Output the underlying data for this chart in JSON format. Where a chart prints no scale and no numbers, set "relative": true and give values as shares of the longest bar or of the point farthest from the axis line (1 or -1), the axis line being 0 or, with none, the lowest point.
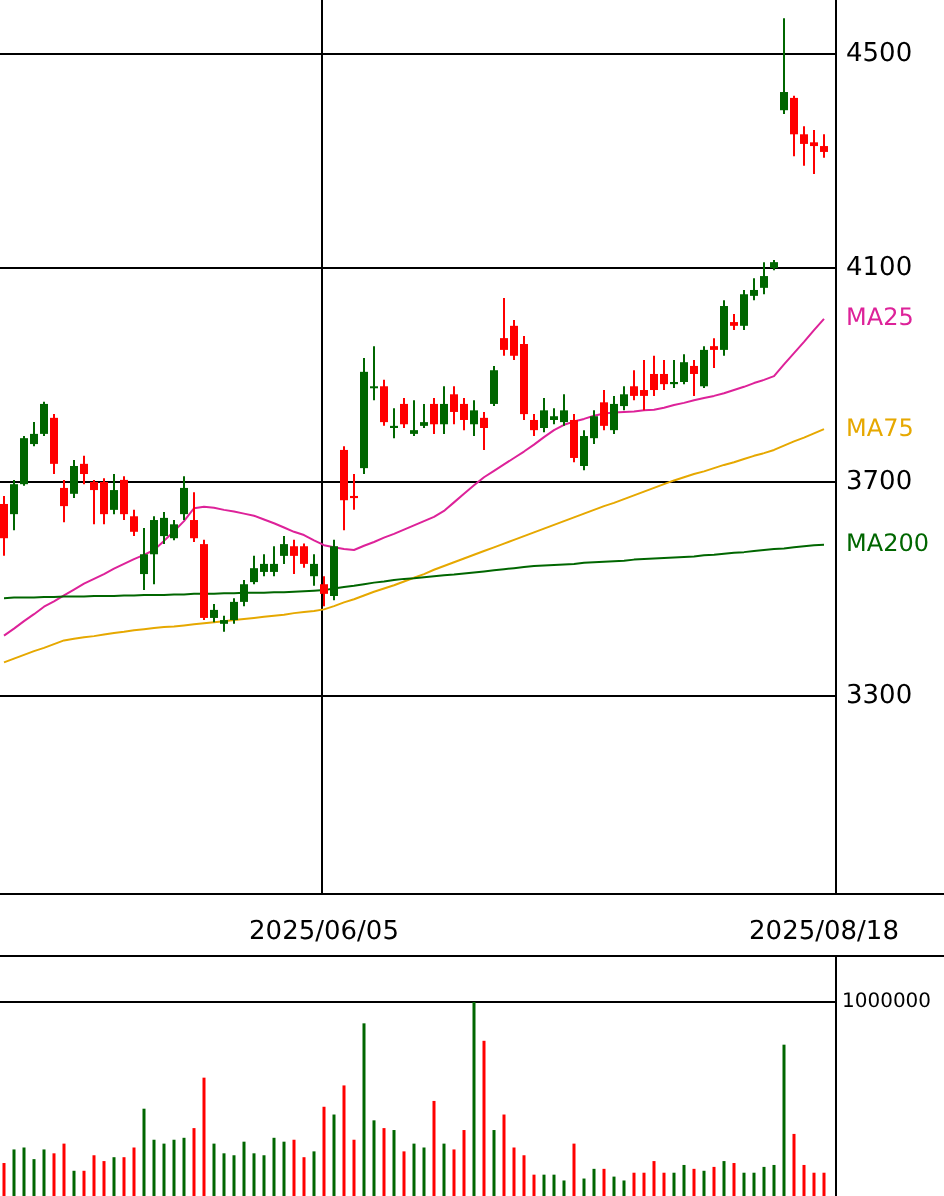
{
  "chart_data": [
    {
      "type": "candlestick",
      "categories": [
        null,
        null,
        null,
        null,
        null,
        null,
        null,
        null,
        null,
        null,
        null,
        null,
        null,
        null,
        null,
        null,
        null,
        null,
        null,
        null,
        null,
        null,
        null,
        null,
        null,
        null,
        null,
        null,
        null,
        null,
        null,
        null,
        "2025/06/05",
        null,
        null,
        null,
        null,
        null,
        null,
        null,
        null,
        null,
        null,
        null,
        null,
        null,
        null,
        null,
        null,
        null,
        null,
        null,
        null,
        null,
        null,
        null,
        null,
        null,
        null,
        null,
        null,
        null,
        null,
        null,
        null,
        null,
        null,
        null,
        null,
        null,
        null,
        null,
        null,
        null,
        null,
        null,
        null,
        null,
        null,
        null,
        null,
        null,
        "2025/08/18"
      ],
      "ohlc": [
        [
          3659,
          3674,
          3562,
          3595
        ],
        [
          3640,
          3704,
          3610,
          3696
        ],
        [
          3696,
          3786,
          3693,
          3782
        ],
        [
          3771,
          3812,
          3767,
          3790
        ],
        [
          3790,
          3850,
          3786,
          3846
        ],
        [
          3820,
          3827,
          3715,
          3734
        ],
        [
          3689,
          3704,
          3625,
          3655
        ],
        [
          3678,
          3741,
          3670,
          3730
        ],
        [
          3734,
          3749,
          3696,
          3715
        ],
        [
          3700,
          3704,
          3621,
          3685
        ],
        [
          3700,
          3707,
          3621,
          3640
        ],
        [
          3648,
          3715,
          3640,
          3685
        ],
        [
          3704,
          3711,
          3629,
          3640
        ],
        [
          3636,
          3648,
          3599,
          3607
        ],
        [
          3528,
          3614,
          3498,
          3565
        ],
        [
          3565,
          3636,
          3509,
          3629
        ],
        [
          3599,
          3644,
          3584,
          3633
        ],
        [
          3595,
          3629,
          3591,
          3621
        ],
        [
          3640,
          3711,
          3629,
          3689
        ],
        [
          3629,
          3681,
          3588,
          3595
        ],
        [
          3584,
          3592,
          3442,
          3446
        ],
        [
          3446,
          3472,
          3438,
          3461
        ],
        [
          3435,
          3450,
          3420,
          3442
        ],
        [
          3442,
          3483,
          3435,
          3476
        ],
        [
          3476,
          3517,
          3468,
          3509
        ],
        [
          3513,
          3562,
          3509,
          3539
        ],
        [
          3532,
          3565,
          3524,
          3547
        ],
        [
          3532,
          3580,
          3524,
          3547
        ],
        [
          3562,
          3599,
          3547,
          3584
        ],
        [
          3580,
          3592,
          3528,
          3562
        ],
        [
          3580,
          3585,
          3540,
          3547
        ],
        [
          3524,
          3565,
          3506,
          3547
        ],
        [
          3509,
          3524,
          3468,
          3491
        ],
        [
          3487,
          3592,
          3479,
          3580
        ],
        [
          3760,
          3767,
          3610,
          3666
        ],
        [
          3674,
          3715,
          3648,
          3670
        ],
        [
          3726,
          3932,
          3715,
          3906
        ],
        [
          3876,
          3954,
          3853,
          3879
        ],
        [
          3879,
          3891,
          3805,
          3812
        ],
        [
          3801,
          3838,
          3782,
          3805
        ],
        [
          3846,
          3857,
          3801,
          3808
        ],
        [
          3790,
          3853,
          3786,
          3797
        ],
        [
          3805,
          3846,
          3801,
          3812
        ],
        [
          3846,
          3857,
          3790,
          3808
        ],
        [
          3808,
          3879,
          3790,
          3846
        ],
        [
          3864,
          3879,
          3808,
          3831
        ],
        [
          3846,
          3857,
          3797,
          3816
        ],
        [
          3808,
          3853,
          3786,
          3834
        ],
        [
          3820,
          3831,
          3760,
          3801
        ],
        [
          3846,
          3917,
          3842,
          3909
        ],
        [
          3969,
          4044,
          3936,
          3947
        ],
        [
          3992,
          4003,
          3928,
          3936
        ],
        [
          3958,
          3973,
          3816,
          3827
        ],
        [
          3816,
          3827,
          3786,
          3797
        ],
        [
          3801,
          3857,
          3793,
          3834
        ],
        [
          3816,
          3838,
          3808,
          3823
        ],
        [
          3812,
          3864,
          3805,
          3834
        ],
        [
          3816,
          3827,
          3737,
          3745
        ],
        [
          3730,
          3797,
          3722,
          3786
        ],
        [
          3782,
          3834,
          3771,
          3823
        ],
        [
          3849,
          3872,
          3797,
          3805
        ],
        [
          3797,
          3861,
          3790,
          3846
        ],
        [
          3842,
          3879,
          3834,
          3864
        ],
        [
          3879,
          3909,
          3853,
          3861
        ],
        [
          3872,
          3928,
          3834,
          3861
        ],
        [
          3902,
          3936,
          3861,
          3872
        ],
        [
          3902,
          3928,
          3872,
          3883
        ],
        [
          3883,
          3928,
          3876,
          3887
        ],
        [
          3887,
          3939,
          3883,
          3924
        ],
        [
          3917,
          3928,
          3861,
          3902
        ],
        [
          3879,
          3954,
          3876,
          3947
        ],
        [
          3954,
          3969,
          3913,
          3947
        ],
        [
          3947,
          4040,
          3936,
          4029
        ],
        [
          3999,
          4014,
          3984,
          3992
        ],
        [
          3992,
          4059,
          3984,
          4051
        ],
        [
          4048,
          4081,
          4040,
          4059
        ],
        [
          4063,
          4111,
          4051,
          4085
        ],
        [
          4100,
          4115,
          4096,
          4111
        ],
        [
          4395,
          4567,
          4388,
          4429
        ],
        [
          4418,
          4422,
          4309,
          4350
        ],
        [
          4350,
          4365,
          4291,
          4332
        ],
        [
          4335,
          4358,
          4276,
          4328
        ],
        [
          4328,
          4350,
          4306,
          4317
        ]
      ],
      "colors": [
        "#ff0000",
        "#006600",
        "#006600",
        "#006600",
        "#006600",
        "#ff0000",
        "#ff0000",
        "#006600",
        "#ff0000",
        "#ff0000",
        "#ff0000",
        "#006600",
        "#ff0000",
        "#ff0000",
        "#006600",
        "#006600",
        "#006600",
        "#006600",
        "#006600",
        "#ff0000",
        "#ff0000",
        "#006600",
        "#006600",
        "#006600",
        "#006600",
        "#006600",
        "#006600",
        "#006600",
        "#006600",
        "#ff0000",
        "#ff0000",
        "#006600",
        "#ff0000",
        "#006600",
        "#ff0000",
        "#ff0000",
        "#006600",
        "#006600",
        "#ff0000",
        "#006600",
        "#ff0000",
        "#006600",
        "#006600",
        "#ff0000",
        "#006600",
        "#ff0000",
        "#ff0000",
        "#006600",
        "#ff0000",
        "#006600",
        "#ff0000",
        "#ff0000",
        "#ff0000",
        "#ff0000",
        "#006600",
        "#006600",
        "#006600",
        "#ff0000",
        "#006600",
        "#006600",
        "#ff0000",
        "#006600",
        "#006600",
        "#ff0000",
        "#ff0000",
        "#ff0000",
        "#ff0000",
        "#006600",
        "#006600",
        "#ff0000",
        "#006600",
        "#ff0000",
        "#006600",
        "#ff0000",
        "#006600",
        "#006600",
        "#006600",
        "#006600",
        "#006600",
        "#ff0000",
        "#ff0000",
        "#ff0000",
        "#ff0000"
      ],
      "series": [
        {
          "type": "line",
          "name": "MA25",
          "color": "#dd2299",
          "values": [
            3413,
            3426,
            3440,
            3453,
            3467,
            3477,
            3488,
            3499,
            3510,
            3519,
            3528,
            3538,
            3547,
            3556,
            3564,
            3573,
            3590,
            3608,
            3627,
            3651,
            3654,
            3652,
            3648,
            3645,
            3641,
            3637,
            3630,
            3623,
            3615,
            3607,
            3601,
            3591,
            3582,
            3578,
            3575,
            3573,
            3581,
            3588,
            3596,
            3603,
            3611,
            3619,
            3627,
            3635,
            3646,
            3662,
            3678,
            3694,
            3709,
            3721,
            3733,
            3745,
            3757,
            3770,
            3784,
            3797,
            3807,
            3813,
            3818,
            3824,
            3828,
            3830,
            3831,
            3832,
            3834,
            3835,
            3839,
            3844,
            3848,
            3853,
            3857,
            3861,
            3866,
            3872,
            3878,
            3885,
            3891,
            3898,
            3920,
            3941,
            3962,
            3984,
            4005
          ]
        },
        {
          "type": "line",
          "name": "MA75",
          "color": "#e6a800",
          "values": [
            3363,
            3370,
            3377,
            3384,
            3390,
            3397,
            3404,
            3407,
            3410,
            3412,
            3415,
            3418,
            3420,
            3423,
            3425,
            3427,
            3429,
            3430,
            3432,
            3434,
            3436,
            3438,
            3440,
            3442,
            3444,
            3446,
            3448,
            3450,
            3452,
            3455,
            3457,
            3459,
            3462,
            3468,
            3475,
            3481,
            3488,
            3495,
            3501,
            3507,
            3514,
            3521,
            3528,
            3536,
            3543,
            3550,
            3557,
            3564,
            3571,
            3578,
            3585,
            3592,
            3599,
            3606,
            3613,
            3620,
            3627,
            3634,
            3641,
            3648,
            3655,
            3661,
            3668,
            3675,
            3682,
            3689,
            3696,
            3703,
            3709,
            3715,
            3720,
            3726,
            3732,
            3737,
            3743,
            3749,
            3754,
            3760,
            3768,
            3776,
            3783,
            3791,
            3799
          ]
        },
        {
          "type": "line",
          "name": "MA200",
          "color": "#006600",
          "values": [
            3483,
            3484,
            3484,
            3484,
            3485,
            3485,
            3486,
            3486,
            3486,
            3487,
            3487,
            3487,
            3488,
            3488,
            3489,
            3489,
            3489,
            3490,
            3490,
            3491,
            3491,
            3491,
            3492,
            3492,
            3493,
            3493,
            3493,
            3494,
            3494,
            3495,
            3496,
            3497,
            3498,
            3501,
            3504,
            3506,
            3509,
            3512,
            3514,
            3517,
            3519,
            3520,
            3522,
            3524,
            3526,
            3527,
            3529,
            3531,
            3533,
            3535,
            3537,
            3539,
            3541,
            3543,
            3544,
            3545,
            3546,
            3547,
            3549,
            3550,
            3551,
            3552,
            3553,
            3555,
            3556,
            3557,
            3558,
            3559,
            3560,
            3561,
            3563,
            3564,
            3566,
            3568,
            3569,
            3571,
            3573,
            3575,
            3576,
            3578,
            3580,
            3582,
            3583
          ]
        }
      ],
      "ylim": [
        2930,
        4601
      ],
      "yticks": [
        3300,
        3700,
        4100,
        4500
      ],
      "grid": true
    },
    {
      "type": "bar",
      "relative": true,
      "categories": [
        null,
        null,
        null,
        null,
        null,
        null,
        null,
        null,
        null,
        null,
        null,
        null,
        null,
        null,
        null,
        null,
        null,
        null,
        null,
        null,
        null,
        null,
        null,
        null,
        null,
        null,
        null,
        null,
        null,
        null,
        null,
        null,
        null,
        null,
        null,
        null,
        null,
        null,
        null,
        null,
        null,
        null,
        null,
        null,
        null,
        null,
        null,
        null,
        null,
        null,
        null,
        null,
        null,
        null,
        null,
        null,
        null,
        null,
        null,
        null,
        null,
        null,
        null,
        null,
        null,
        null,
        null,
        null,
        null,
        null,
        null,
        null,
        null,
        null,
        null,
        null,
        null,
        null,
        null,
        null,
        null,
        null,
        null
      ],
      "values": [
        0.17,
        0.24,
        0.25,
        0.19,
        0.24,
        0.22,
        0.27,
        0.13,
        0.13,
        0.21,
        0.18,
        0.2,
        0.2,
        0.25,
        0.45,
        0.29,
        0.27,
        0.29,
        0.3,
        0.35,
        0.61,
        0.27,
        0.22,
        0.21,
        0.28,
        0.22,
        0.21,
        0.3,
        0.28,
        0.29,
        0.2,
        0.23,
        0.46,
        0.42,
        0.57,
        0.29,
        0.89,
        0.39,
        0.35,
        0.34,
        0.23,
        0.27,
        0.25,
        0.49,
        0.27,
        0.24,
        0.34,
        1,
        0.8,
        0.34,
        0.42,
        0.25,
        0.21,
        0.11,
        0.11,
        0.11,
        0.08,
        0.27,
        0.09,
        0.14,
        0.14,
        0.1,
        0.08,
        0.12,
        0.12,
        0.18,
        0.12,
        0.12,
        0.16,
        0.14,
        0.13,
        0.15,
        0.18,
        0.17,
        0.12,
        0.12,
        0.15,
        0.16,
        0.78,
        0.32,
        0.16,
        0.12,
        0.12
      ],
      "colors": [
        "#ff0000",
        "#006600",
        "#006600",
        "#006600",
        "#006600",
        "#ff0000",
        "#ff0000",
        "#006600",
        "#ff0000",
        "#ff0000",
        "#ff0000",
        "#006600",
        "#ff0000",
        "#ff0000",
        "#006600",
        "#006600",
        "#006600",
        "#006600",
        "#006600",
        "#ff0000",
        "#ff0000",
        "#006600",
        "#006600",
        "#006600",
        "#006600",
        "#006600",
        "#006600",
        "#006600",
        "#006600",
        "#ff0000",
        "#ff0000",
        "#006600",
        "#ff0000",
        "#006600",
        "#ff0000",
        "#ff0000",
        "#006600",
        "#006600",
        "#ff0000",
        "#006600",
        "#ff0000",
        "#006600",
        "#006600",
        "#ff0000",
        "#006600",
        "#ff0000",
        "#ff0000",
        "#006600",
        "#ff0000",
        "#006600",
        "#ff0000",
        "#ff0000",
        "#ff0000",
        "#ff0000",
        "#006600",
        "#006600",
        "#006600",
        "#ff0000",
        "#006600",
        "#006600",
        "#ff0000",
        "#006600",
        "#006600",
        "#ff0000",
        "#ff0000",
        "#ff0000",
        "#ff0000",
        "#006600",
        "#006600",
        "#ff0000",
        "#006600",
        "#ff0000",
        "#006600",
        "#ff0000",
        "#006600",
        "#006600",
        "#006600",
        "#006600",
        "#006600",
        "#ff0000",
        "#ff0000",
        "#ff0000",
        "#ff0000"
      ],
      "ref_lines": [
        {
          "axis": "y",
          "value": 1,
          "label": "1000000"
        }
      ]
    }
  ]
}
